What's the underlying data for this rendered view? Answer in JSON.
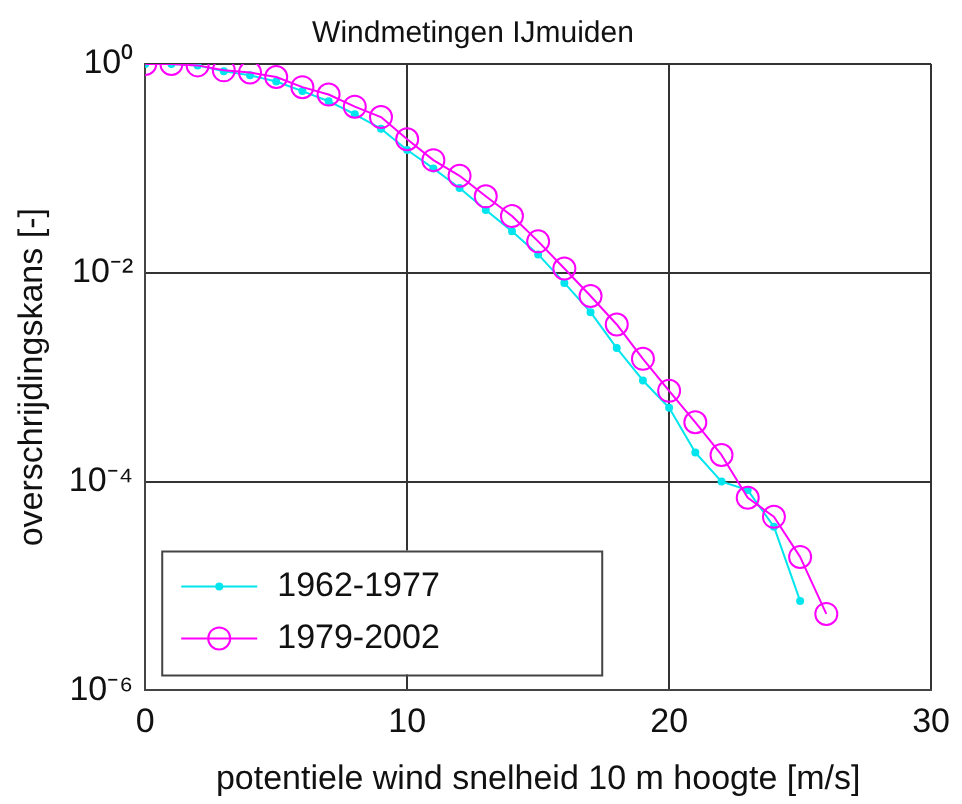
{
  "chart_data": {
    "type": "line",
    "title": "Windmetingen IJmuiden",
    "xlabel": "potentiele wind snelheid 10 m hoogte [m/s]",
    "ylabel": "overschrijdingskans [-]",
    "x": [
      0,
      1,
      2,
      3,
      4,
      5,
      6,
      7,
      8,
      9,
      10,
      11,
      12,
      13,
      14,
      15,
      16,
      17,
      18,
      19,
      20,
      21,
      22,
      23,
      24,
      25,
      26
    ],
    "series": [
      {
        "name": "1962-1977",
        "color": "#00e5ee",
        "marker": "circle",
        "x": [
          0,
          1,
          2,
          3,
          4,
          5,
          6,
          7,
          8,
          9,
          10,
          11,
          12,
          13,
          14,
          15,
          16,
          17,
          18,
          19,
          20,
          21,
          22,
          23,
          24,
          25
        ],
        "values": [
          1,
          1,
          0.97,
          0.85,
          0.78,
          0.68,
          0.55,
          0.44,
          0.33,
          0.24,
          0.15,
          0.1,
          0.065,
          0.04,
          0.025,
          0.015,
          0.008,
          0.0042,
          0.0019,
          0.00093,
          0.00051,
          0.00019,
          0.0001,
          8.3e-05,
          3.7e-05,
          7.2e-06
        ]
      },
      {
        "name": "1979-2002",
        "color": "#ff00ff",
        "marker": "circle",
        "values": [
          1,
          1,
          0.97,
          0.87,
          0.83,
          0.75,
          0.6,
          0.51,
          0.39,
          0.31,
          0.19,
          0.12,
          0.085,
          0.054,
          0.035,
          0.02,
          0.011,
          0.006,
          0.0032,
          0.0015,
          0.00074,
          0.00037,
          0.00018,
          7e-05,
          4.6e-05,
          1.9e-05,
          5.4e-06
        ]
      }
    ],
    "log": "y",
    "xlim": [
      0,
      30
    ],
    "xticks": [
      0,
      10,
      20,
      30
    ],
    "ylim": [
      1e-06,
      1
    ],
    "yticks": [
      {
        "value": 1e-06,
        "label": "10⁻⁶"
      },
      {
        "value": 0.0001,
        "label": "10⁻⁴"
      },
      {
        "value": 0.01,
        "label": "10⁻²"
      },
      {
        "value": 1,
        "label": "10⁰"
      }
    ],
    "grid": true,
    "legend": "bottom left",
    "line_style": "solid"
  }
}
